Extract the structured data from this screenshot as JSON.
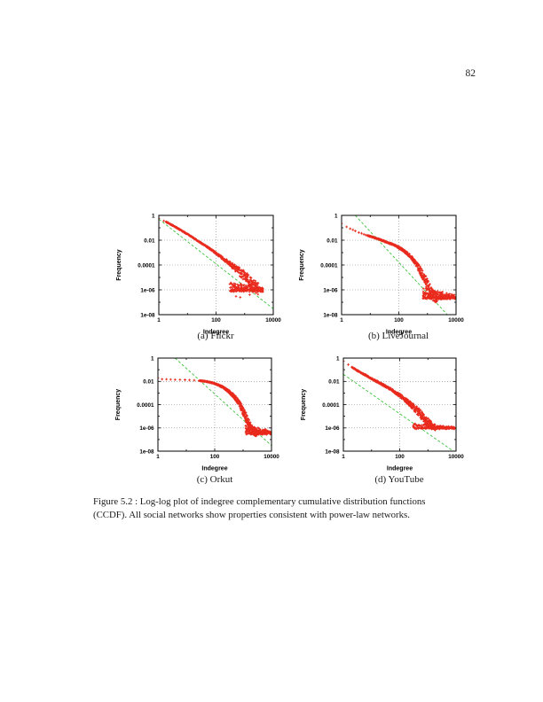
{
  "page": {
    "number": "82"
  },
  "figure_caption": {
    "line1": "Figure 5.2 : Log-log plot of indegree complementary cumulative distribution functions",
    "line2": "(CCDF). All social networks show properties consistent with power-law networks."
  },
  "chart_data": [
    {
      "type": "scatter",
      "network": "Flickr",
      "caption": "(a) Flickr",
      "xlabel": "Indegree",
      "ylabel": "Frequency",
      "xscale": "log",
      "yscale": "log",
      "xlim": [
        1,
        10000
      ],
      "ylim": [
        1e-08,
        1
      ],
      "xticks": [
        1,
        100,
        10000
      ],
      "xtick_labels": [
        "1",
        "100",
        "10000"
      ],
      "yticks": [
        1,
        0.01,
        0.0001,
        1e-06,
        1e-08
      ],
      "ytick_labels": [
        "1",
        "0.01",
        "0.0001",
        "1e-06",
        "1e-08"
      ],
      "grid": true,
      "marker": "plus",
      "marker_color": "#e8291c",
      "fit_line_color": "#3cc43c",
      "fit_line": [
        [
          1,
          0.5
        ],
        [
          10000,
          3e-08
        ]
      ],
      "points": [
        [
          1,
          0.55
        ],
        [
          1.5,
          0.36
        ],
        [
          2,
          0.26
        ],
        [
          3,
          0.16
        ],
        [
          5,
          0.08
        ],
        [
          8,
          0.042
        ],
        [
          12,
          0.024
        ],
        [
          20,
          0.011
        ],
        [
          30,
          0.006
        ],
        [
          50,
          0.0028
        ],
        [
          80,
          0.0013
        ],
        [
          120,
          0.00065
        ],
        [
          200,
          0.00026
        ],
        [
          300,
          0.00013
        ],
        [
          500,
          5e-05
        ],
        [
          800,
          2e-05
        ],
        [
          1200,
          8e-06
        ],
        [
          2000,
          2.5e-06
        ],
        [
          3000,
          1.2e-06
        ]
      ],
      "band": [
        [
          1,
          0.04
        ],
        [
          30,
          0.05
        ],
        [
          100,
          0.08
        ],
        [
          300,
          0.18
        ],
        [
          700,
          0.35
        ],
        [
          1500,
          0.5
        ],
        [
          3000,
          0.5
        ]
      ],
      "dense_from": 1.8,
      "tail": {
        "x0": 300,
        "x1": 4500,
        "level": 8e-07,
        "spread": 0.75
      },
      "extra_points": [
        [
          500,
          3e-07
        ],
        [
          700,
          2.5e-07
        ],
        [
          1500,
          4e-07
        ],
        [
          2500,
          1.5e-06
        ],
        [
          3500,
          9e-07
        ]
      ]
    },
    {
      "type": "scatter",
      "network": "LiveJournal",
      "caption": "(b) LiveJournal",
      "xlabel": "Indegree",
      "ylabel": "Frequency",
      "xscale": "log",
      "yscale": "log",
      "xlim": [
        1,
        10000
      ],
      "ylim": [
        1e-08,
        1
      ],
      "xticks": [
        1,
        100,
        10000
      ],
      "xtick_labels": [
        "1",
        "100",
        "10000"
      ],
      "yticks": [
        1,
        0.01,
        0.0001,
        1e-06,
        1e-08
      ],
      "ytick_labels": [
        "1",
        "0.01",
        "0.0001",
        "1e-06",
        "1e-08"
      ],
      "grid": true,
      "marker": "plus",
      "marker_color": "#e8291c",
      "fit_line_color": "#3cc43c",
      "fit_line": [
        [
          3,
          1
        ],
        [
          8000,
          3e-09
        ]
      ],
      "points": [
        [
          1,
          0.22
        ],
        [
          1.5,
          0.12
        ],
        [
          2,
          0.085
        ],
        [
          2.5,
          0.07
        ],
        [
          3,
          0.055
        ],
        [
          4,
          0.042
        ],
        [
          5,
          0.036
        ],
        [
          6,
          0.03
        ],
        [
          7,
          0.026
        ],
        [
          9,
          0.022
        ],
        [
          13,
          0.017
        ],
        [
          20,
          0.012
        ],
        [
          30,
          0.0085
        ],
        [
          50,
          0.0055
        ],
        [
          80,
          0.0035
        ],
        [
          120,
          0.002
        ],
        [
          180,
          0.001
        ],
        [
          250,
          0.0005
        ],
        [
          350,
          0.0002
        ],
        [
          500,
          6e-05
        ],
        [
          700,
          1.5e-05
        ],
        [
          900,
          4e-06
        ],
        [
          1200,
          1e-06
        ],
        [
          1600,
          3.5e-07
        ],
        [
          2200,
          2.2e-07
        ]
      ],
      "band": [
        [
          1,
          0.02
        ],
        [
          50,
          0.06
        ],
        [
          200,
          0.12
        ],
        [
          400,
          0.2
        ],
        [
          700,
          0.45
        ],
        [
          1200,
          0.55
        ],
        [
          2200,
          0.4
        ]
      ],
      "dense_from": 8,
      "tail": {
        "x0": 700,
        "x1": 10000,
        "level": 2e-07,
        "spread": 0.9
      },
      "extra_points": [
        [
          4000,
          2.5e-07
        ],
        [
          6000,
          2e-07
        ],
        [
          9000,
          2.2e-07
        ]
      ]
    },
    {
      "type": "scatter",
      "network": "Orkut",
      "caption": "(c) Orkut",
      "xlabel": "Indegree",
      "ylabel": "Frequency",
      "xscale": "log",
      "yscale": "log",
      "xlim": [
        1,
        10000
      ],
      "ylim": [
        1e-08,
        1
      ],
      "xticks": [
        1,
        100,
        10000
      ],
      "xtick_labels": [
        "1",
        "100",
        "10000"
      ],
      "yticks": [
        1,
        0.01,
        0.0001,
        1e-06,
        1e-08
      ],
      "ytick_labels": [
        "1",
        "0.01",
        "0.0001",
        "1e-06",
        "1e-08"
      ],
      "grid": true,
      "marker": "plus",
      "marker_color": "#e8291c",
      "fit_line_color": "#3cc43c",
      "fit_line": [
        [
          4,
          1
        ],
        [
          10000,
          3e-08
        ]
      ],
      "points": [
        [
          1,
          0.02
        ],
        [
          1.4,
          0.0155
        ],
        [
          2,
          0.015
        ],
        [
          2.8,
          0.0145
        ],
        [
          4,
          0.014
        ],
        [
          6,
          0.0138
        ],
        [
          9,
          0.0135
        ],
        [
          13,
          0.013
        ],
        [
          19,
          0.0125
        ],
        [
          28,
          0.0115
        ],
        [
          40,
          0.0105
        ],
        [
          60,
          0.009
        ],
        [
          90,
          0.007
        ],
        [
          130,
          0.005
        ],
        [
          200,
          0.003
        ],
        [
          300,
          0.0015
        ],
        [
          450,
          0.0006
        ],
        [
          650,
          0.0002
        ],
        [
          900,
          5e-05
        ],
        [
          1200,
          1e-05
        ],
        [
          1600,
          2e-06
        ],
        [
          2200,
          6e-07
        ],
        [
          3000,
          4e-07
        ]
      ],
      "band": [
        [
          1,
          0.02
        ],
        [
          100,
          0.05
        ],
        [
          300,
          0.12
        ],
        [
          700,
          0.25
        ],
        [
          1200,
          0.45
        ],
        [
          3000,
          0.35
        ]
      ],
      "dense_from": 30,
      "tail": {
        "x0": 1200,
        "x1": 10000,
        "level": 3e-07,
        "spread": 0.8
      },
      "extra_points": []
    },
    {
      "type": "scatter",
      "network": "YouTube",
      "caption": "(d) YouTube",
      "xlabel": "Indegree",
      "ylabel": "Frequency",
      "xscale": "log",
      "yscale": "log",
      "xlim": [
        1,
        10000
      ],
      "ylim": [
        1e-08,
        1
      ],
      "xticks": [
        1,
        100,
        10000
      ],
      "xtick_labels": [
        "1",
        "100",
        "10000"
      ],
      "yticks": [
        1,
        0.01,
        0.0001,
        1e-06,
        1e-08
      ],
      "ytick_labels": [
        "1",
        "0.01",
        "0.0001",
        "1e-06",
        "1e-08"
      ],
      "grid": true,
      "marker": "plus",
      "marker_color": "#e8291c",
      "fit_line_color": "#3cc43c",
      "fit_line": [
        [
          1,
          0.04
        ],
        [
          8000,
          1e-08
        ]
      ],
      "points": [
        [
          1,
          0.55
        ],
        [
          1.5,
          0.28
        ],
        [
          2,
          0.17
        ],
        [
          3,
          0.09
        ],
        [
          4,
          0.06
        ],
        [
          6,
          0.035
        ],
        [
          9,
          0.02
        ],
        [
          13,
          0.012
        ],
        [
          20,
          0.007
        ],
        [
          30,
          0.004
        ],
        [
          50,
          0.002
        ],
        [
          80,
          0.0009
        ],
        [
          120,
          0.00045
        ],
        [
          180,
          0.0002
        ],
        [
          260,
          9e-05
        ],
        [
          400,
          3.5e-05
        ],
        [
          600,
          1.2e-05
        ],
        [
          900,
          4e-06
        ],
        [
          1300,
          1.8e-06
        ],
        [
          1800,
          1.1e-06
        ]
      ],
      "band": [
        [
          2,
          0.05
        ],
        [
          50,
          0.1
        ],
        [
          200,
          0.22
        ],
        [
          600,
          0.4
        ],
        [
          1800,
          0.35
        ]
      ],
      "dense_from": 2,
      "tail": {
        "x0": 300,
        "x1": 9000,
        "level": 9e-07,
        "spread": 0.45
      },
      "extra_points": []
    }
  ]
}
